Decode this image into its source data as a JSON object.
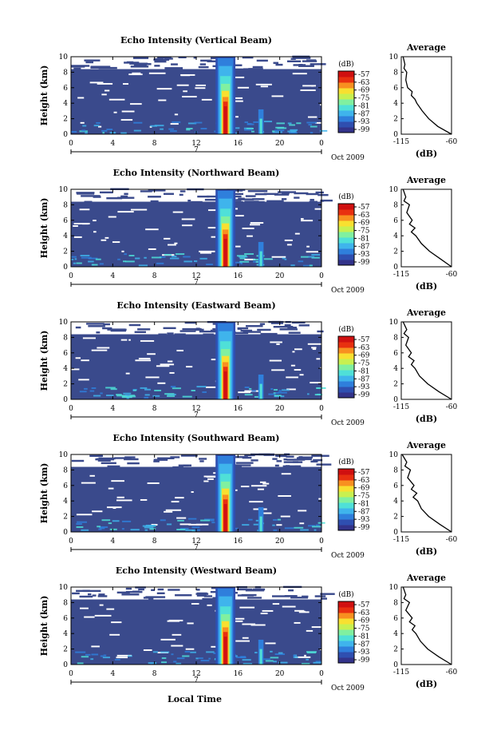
{
  "colors": {
    "noise": "#3a4a8c",
    "background": "#ffffff",
    "colormap": [
      "#33338a",
      "#2f4fb0",
      "#2f7fdc",
      "#3fb4ec",
      "#4fe0d8",
      "#80f0a0",
      "#c8f050",
      "#f8e030",
      "#f89020",
      "#e83010",
      "#d01010"
    ]
  },
  "x_axis": {
    "ticks": [
      "0",
      "4",
      "8",
      "12",
      "16",
      "20",
      "0"
    ],
    "date_day": "7",
    "month_year": "Oct 2009",
    "label": "Local Time"
  },
  "y_axis": {
    "label": "Height (km)",
    "ticks": [
      "0",
      "2",
      "4",
      "6",
      "8",
      "10"
    ]
  },
  "colorbar": {
    "unit": "(dB)",
    "ticks": [
      "-57",
      "-63",
      "-69",
      "-75",
      "-81",
      "-87",
      "-93",
      "-99"
    ]
  },
  "average": {
    "title": "Average",
    "xlabel": "(dB)",
    "xticks": [
      "-115",
      "-60"
    ]
  },
  "chart_data": [
    {
      "type": "heatmap",
      "title": "Echo Intensity (Vertical Beam)",
      "xlabel": "",
      "ylabel": "Height (km)",
      "xlim": [
        0,
        24
      ],
      "ylim": [
        0,
        10
      ],
      "colorbar_range_db": [
        -99,
        -57
      ],
      "rain_event_hours": [
        14.2,
        15.4
      ],
      "secondary_event_hour": 18.2,
      "average_profile": {
        "x_db": [
          -60,
          -75,
          -85,
          -92,
          -98,
          -100,
          -104,
          -103,
          -108,
          -110,
          -109,
          -112,
          -111,
          -113
        ],
        "height_km": [
          0,
          1,
          2,
          3,
          4,
          4.5,
          5,
          5.5,
          6,
          7,
          8,
          8.5,
          9,
          10
        ]
      }
    },
    {
      "type": "heatmap",
      "title": "Echo Intensity (Northward Beam)",
      "xlabel": "",
      "ylabel": "Height (km)",
      "xlim": [
        0,
        24
      ],
      "ylim": [
        0,
        10
      ],
      "colorbar_range_db": [
        -99,
        -57
      ],
      "rain_event_hours": [
        14.2,
        15.4
      ],
      "secondary_event_hour": 18.2,
      "average_profile": {
        "x_db": [
          -60,
          -72,
          -84,
          -93,
          -99,
          -104,
          -100,
          -106,
          -103,
          -109,
          -106,
          -112,
          -110,
          -113
        ],
        "height_km": [
          0,
          1,
          2,
          3,
          4,
          4.5,
          5,
          5.5,
          6,
          7,
          8,
          8.5,
          9,
          10
        ]
      }
    },
    {
      "type": "heatmap",
      "title": "Echo Intensity (Eastward Beam)",
      "xlabel": "",
      "ylabel": "Height (km)",
      "xlim": [
        0,
        24
      ],
      "ylim": [
        0,
        10
      ],
      "colorbar_range_db": [
        -99,
        -57
      ],
      "rain_event_hours": [
        14.2,
        15.4
      ],
      "secondary_event_hour": 18.2,
      "average_profile": {
        "x_db": [
          -60,
          -74,
          -86,
          -95,
          -100,
          -104,
          -101,
          -107,
          -104,
          -110,
          -107,
          -112,
          -109,
          -113
        ],
        "height_km": [
          0,
          1,
          2,
          3,
          4,
          4.5,
          5,
          5.5,
          6,
          7,
          8,
          8.5,
          9,
          10
        ]
      }
    },
    {
      "type": "heatmap",
      "title": "Echo Intensity (Southward Beam)",
      "xlabel": "",
      "ylabel": "Height (km)",
      "xlim": [
        0,
        24
      ],
      "ylim": [
        0,
        10
      ],
      "colorbar_range_db": [
        -99,
        -57
      ],
      "rain_event_hours": [
        14.2,
        15.4
      ],
      "secondary_event_hour": 18.2,
      "average_profile": {
        "x_db": [
          -60,
          -73,
          -85,
          -93,
          -97,
          -102,
          -98,
          -104,
          -101,
          -108,
          -105,
          -111,
          -109,
          -114
        ],
        "height_km": [
          0,
          1,
          2,
          3,
          4,
          4.5,
          5,
          5.5,
          6,
          7,
          8,
          8.5,
          9,
          10
        ]
      }
    },
    {
      "type": "heatmap",
      "title": "Echo Intensity (Westward Beam)",
      "xlabel": "",
      "ylabel": "Height (km)",
      "xlim": [
        0,
        24
      ],
      "ylim": [
        0,
        10
      ],
      "colorbar_range_db": [
        -99,
        -57
      ],
      "rain_event_hours": [
        14.2,
        15.4
      ],
      "secondary_event_hour": 18.2,
      "average_profile": {
        "x_db": [
          -60,
          -74,
          -86,
          -94,
          -99,
          -103,
          -100,
          -106,
          -103,
          -110,
          -106,
          -112,
          -110,
          -113
        ],
        "height_km": [
          0,
          1,
          2,
          3,
          4,
          4.5,
          5,
          5.5,
          6,
          7,
          8,
          8.5,
          9,
          10
        ]
      }
    }
  ]
}
